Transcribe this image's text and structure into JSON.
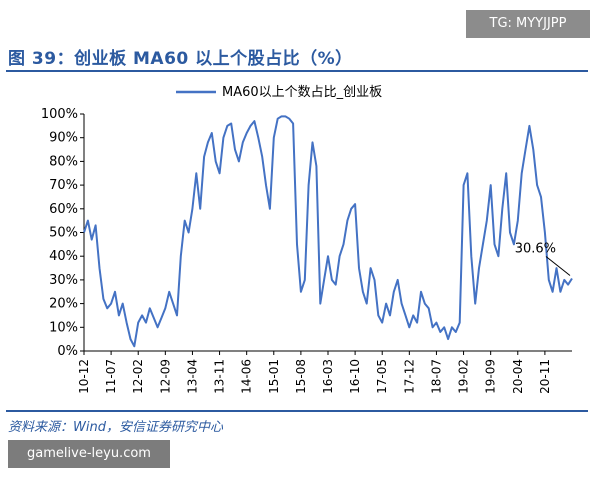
{
  "header": {
    "title": "图 39：创业板 MA60 以上个股占比（%）"
  },
  "watermarks": {
    "top_right": "TG: MYYJJPP",
    "bottom_left": "gamelive-leyu.com"
  },
  "footer": {
    "source": "资料来源：Wind，安信证券研究中心"
  },
  "colors": {
    "brand": "#2c5aa0",
    "series": "#4472c4"
  },
  "chart_data": {
    "type": "line",
    "title": "",
    "xlabel": "",
    "ylabel": "",
    "ylim": [
      0,
      100
    ],
    "y_unit": "%",
    "y_ticks": [
      "0%",
      "10%",
      "20%",
      "30%",
      "40%",
      "50%",
      "60%",
      "70%",
      "80%",
      "90%",
      "100%"
    ],
    "x_ticks": [
      "10-12",
      "11-07",
      "12-02",
      "12-09",
      "13-04",
      "13-11",
      "14-06",
      "15-01",
      "15-08",
      "16-03",
      "16-10",
      "17-05",
      "17-12",
      "18-07",
      "19-02",
      "19-09",
      "20-04",
      "20-11"
    ],
    "legend": {
      "position": "top-center",
      "entries": [
        "MA60以上个数占比_创业板"
      ]
    },
    "grid": false,
    "annotation": {
      "text": "30.6%",
      "target_x": "2021-06",
      "target_y": 30.6
    },
    "series": [
      {
        "name": "MA60以上个数占比_创业板",
        "points": [
          [
            "2010-12",
            50
          ],
          [
            "2011-01",
            55
          ],
          [
            "2011-02",
            47
          ],
          [
            "2011-03",
            53
          ],
          [
            "2011-04",
            35
          ],
          [
            "2011-05",
            22
          ],
          [
            "2011-06",
            18
          ],
          [
            "2011-07",
            20
          ],
          [
            "2011-08",
            25
          ],
          [
            "2011-09",
            15
          ],
          [
            "2011-10",
            20
          ],
          [
            "2011-11",
            12
          ],
          [
            "2011-12",
            5
          ],
          [
            "2012-01",
            2
          ],
          [
            "2012-02",
            12
          ],
          [
            "2012-03",
            15
          ],
          [
            "2012-04",
            12
          ],
          [
            "2012-05",
            18
          ],
          [
            "2012-06",
            14
          ],
          [
            "2012-07",
            10
          ],
          [
            "2012-08",
            14
          ],
          [
            "2012-09",
            18
          ],
          [
            "2012-10",
            25
          ],
          [
            "2012-11",
            20
          ],
          [
            "2012-12",
            15
          ],
          [
            "2013-01",
            40
          ],
          [
            "2013-02",
            55
          ],
          [
            "2013-03",
            50
          ],
          [
            "2013-04",
            60
          ],
          [
            "2013-05",
            75
          ],
          [
            "2013-06",
            60
          ],
          [
            "2013-07",
            82
          ],
          [
            "2013-08",
            88
          ],
          [
            "2013-09",
            92
          ],
          [
            "2013-10",
            80
          ],
          [
            "2013-11",
            75
          ],
          [
            "2013-12",
            90
          ],
          [
            "2014-01",
            95
          ],
          [
            "2014-02",
            96
          ],
          [
            "2014-03",
            85
          ],
          [
            "2014-04",
            80
          ],
          [
            "2014-05",
            88
          ],
          [
            "2014-06",
            92
          ],
          [
            "2014-07",
            95
          ],
          [
            "2014-08",
            97
          ],
          [
            "2014-09",
            90
          ],
          [
            "2014-10",
            82
          ],
          [
            "2014-11",
            70
          ],
          [
            "2014-12",
            60
          ],
          [
            "2015-01",
            90
          ],
          [
            "2015-02",
            98
          ],
          [
            "2015-03",
            99
          ],
          [
            "2015-04",
            99
          ],
          [
            "2015-05",
            98
          ],
          [
            "2015-06",
            96
          ],
          [
            "2015-07",
            45
          ],
          [
            "2015-08",
            25
          ],
          [
            "2015-09",
            30
          ],
          [
            "2015-10",
            70
          ],
          [
            "2015-11",
            88
          ],
          [
            "2015-12",
            78
          ],
          [
            "2016-01",
            20
          ],
          [
            "2016-02",
            30
          ],
          [
            "2016-03",
            40
          ],
          [
            "2016-04",
            30
          ],
          [
            "2016-05",
            28
          ],
          [
            "2016-06",
            40
          ],
          [
            "2016-07",
            45
          ],
          [
            "2016-08",
            55
          ],
          [
            "2016-09",
            60
          ],
          [
            "2016-10",
            62
          ],
          [
            "2016-11",
            35
          ],
          [
            "2016-12",
            25
          ],
          [
            "2017-01",
            20
          ],
          [
            "2017-02",
            35
          ],
          [
            "2017-03",
            30
          ],
          [
            "2017-04",
            15
          ],
          [
            "2017-05",
            12
          ],
          [
            "2017-06",
            20
          ],
          [
            "2017-07",
            15
          ],
          [
            "2017-08",
            25
          ],
          [
            "2017-09",
            30
          ],
          [
            "2017-10",
            20
          ],
          [
            "2017-11",
            15
          ],
          [
            "2017-12",
            10
          ],
          [
            "2018-01",
            15
          ],
          [
            "2018-02",
            12
          ],
          [
            "2018-03",
            25
          ],
          [
            "2018-04",
            20
          ],
          [
            "2018-05",
            18
          ],
          [
            "2018-06",
            10
          ],
          [
            "2018-07",
            12
          ],
          [
            "2018-08",
            8
          ],
          [
            "2018-09",
            10
          ],
          [
            "2018-10",
            5
          ],
          [
            "2018-11",
            10
          ],
          [
            "2018-12",
            8
          ],
          [
            "2019-01",
            12
          ],
          [
            "2019-02",
            70
          ],
          [
            "2019-03",
            75
          ],
          [
            "2019-04",
            40
          ],
          [
            "2019-05",
            20
          ],
          [
            "2019-06",
            35
          ],
          [
            "2019-07",
            45
          ],
          [
            "2019-08",
            55
          ],
          [
            "2019-09",
            70
          ],
          [
            "2019-10",
            45
          ],
          [
            "2019-11",
            40
          ],
          [
            "2019-12",
            60
          ],
          [
            "2020-01",
            75
          ],
          [
            "2020-02",
            50
          ],
          [
            "2020-03",
            45
          ],
          [
            "2020-04",
            55
          ],
          [
            "2020-05",
            75
          ],
          [
            "2020-06",
            85
          ],
          [
            "2020-07",
            95
          ],
          [
            "2020-08",
            85
          ],
          [
            "2020-09",
            70
          ],
          [
            "2020-10",
            65
          ],
          [
            "2020-11",
            50
          ],
          [
            "2020-12",
            30
          ],
          [
            "2021-01",
            25
          ],
          [
            "2021-02",
            35
          ],
          [
            "2021-03",
            25
          ],
          [
            "2021-04",
            30
          ],
          [
            "2021-05",
            28
          ],
          [
            "2021-06",
            30.6
          ]
        ]
      }
    ]
  }
}
